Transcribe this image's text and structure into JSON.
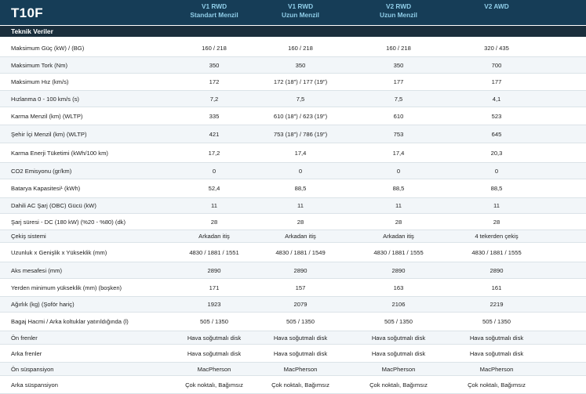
{
  "header": {
    "model": "T10F",
    "columns": [
      {
        "line1": "V1 RWD",
        "line2": "Standart Menzil"
      },
      {
        "line1": "V1 RWD",
        "line2": "Uzun Menzil"
      },
      {
        "line1": "V2 RWD",
        "line2": "Uzun Menzil"
      },
      {
        "line1": "V2 AWD",
        "line2": ""
      }
    ]
  },
  "section_title": "Teknik Veriler",
  "colors": {
    "header_bg": "#163d57",
    "header_text": "#8fcde8",
    "section_bg": "#1a2e3c",
    "row_alt": "#f2f6f9"
  },
  "rows": [
    {
      "label": "Maksimum Güç (kW) / (BG)",
      "values": [
        "160 / 218",
        "160 / 218",
        "160 / 218",
        "320 / 435"
      ]
    },
    {
      "label": "Maksimum Tork (Nm)",
      "values": [
        "350",
        "350",
        "350",
        "700"
      ]
    },
    {
      "label": "Maksimum Hız (km/s)",
      "values": [
        "172",
        "172 (18\") / 177 (19\")",
        "177",
        "177"
      ]
    },
    {
      "label": "Hızlanma 0 - 100 km/s (s)",
      "values": [
        "7,2",
        "7,5",
        "7,5",
        "4,1"
      ]
    },
    {
      "label": "Karma Menzil (km) (WLTP)",
      "values": [
        "335",
        "610 (18\") / 623 (19\")",
        "610",
        "523"
      ]
    },
    {
      "label": "Şehir İçi Menzil (km) (WLTP)",
      "values": [
        "421",
        "753 (18\") / 786 (19\")",
        "753",
        "645"
      ]
    },
    {
      "label": "Karma Enerji Tüketimi (kWh/100 km)",
      "values": [
        "17,2",
        "17,4",
        "17,4",
        "20,3"
      ]
    },
    {
      "label": "CO2 Emisyonu (gr/km)",
      "values": [
        "0",
        "0",
        "0",
        "0"
      ]
    },
    {
      "label": "Batarya Kapasitesi¹ (kWh)",
      "values": [
        "52,4",
        "88,5",
        "88,5",
        "88,5"
      ]
    },
    {
      "label": "Dahili AC Şarj (OBC) Gücü (kW)",
      "values": [
        "11",
        "11",
        "11",
        "11"
      ]
    },
    {
      "label": "Şarj süresi - DC (180 kW) (%20 - %80) (dk)",
      "values": [
        "28",
        "28",
        "28",
        "28"
      ]
    },
    {
      "label": "Çekiş sistemi",
      "values": [
        "Arkadan itiş",
        "Arkadan itiş",
        "Arkadan itiş",
        "4 tekerden çekiş"
      ]
    },
    {
      "label": "Uzunluk x Genişlik x Yükseklik (mm)",
      "values": [
        "4830 / 1881 / 1551",
        "4830 / 1881 / 1549",
        "4830 / 1881 / 1555",
        "4830 / 1881 / 1555"
      ]
    },
    {
      "label": "Aks mesafesi (mm)",
      "values": [
        "2890",
        "2890",
        "2890",
        "2890"
      ]
    },
    {
      "label": "Yerden minimum yükseklik (mm) (boşken)",
      "values": [
        "171",
        "157",
        "163",
        "161"
      ]
    },
    {
      "label": "Ağırlık (kg) (Şoför hariç)",
      "values": [
        "1923",
        "2079",
        "2106",
        "2219"
      ]
    },
    {
      "label": "Bagaj Hacmi / Arka koltuklar yatırıldığında (l)",
      "values": [
        "505 / 1350",
        "505 / 1350",
        "505 / 1350",
        "505 / 1350"
      ]
    },
    {
      "label": "Ön frenler",
      "values": [
        "Hava soğutmalı disk",
        "Hava soğutmalı disk",
        "Hava soğutmalı disk",
        "Hava soğutmalı disk"
      ]
    },
    {
      "label": "Arka frenler",
      "values": [
        "Hava soğutmalı disk",
        "Hava soğutmalı disk",
        "Hava soğutmalı disk",
        "Hava soğutmalı disk"
      ]
    },
    {
      "label": "Ön süspansiyon",
      "values": [
        "MacPherson",
        "MacPherson",
        "MacPherson",
        "MacPherson"
      ]
    },
    {
      "label": "Arka süspansiyon",
      "values": [
        "Çok noktalı, Bağımsız",
        "Çok noktalı, Bağımsız",
        "Çok noktalı, Bağımsız",
        "Çok noktalı, Bağımsız"
      ]
    }
  ]
}
